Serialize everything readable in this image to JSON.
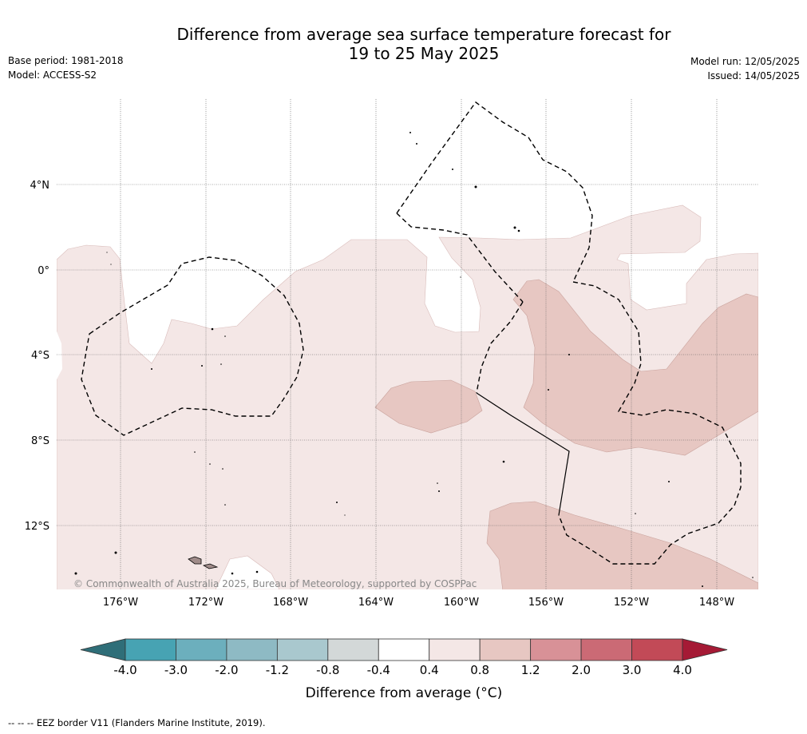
{
  "title": {
    "line1": "Difference from average sea surface temperature forecast for",
    "line2": "19 to 25 May 2025"
  },
  "meta_left": {
    "base_period": "Base period: 1981-2018",
    "model": "Model: ACCESS-S2"
  },
  "meta_right": {
    "model_run": "Model run: 12/05/2025",
    "issued": "Issued: 14/05/2025"
  },
  "map": {
    "lat_labels": [
      "4°N",
      "0°",
      "4°S",
      "8°S",
      "12°S"
    ],
    "lon_labels": [
      "176°W",
      "172°W",
      "168°W",
      "164°W",
      "160°W",
      "156°W",
      "152°W",
      "148°W"
    ],
    "copyright": "© Commonwealth of Australia 2025, Bureau of Meteorology, supported by COSPPac",
    "colors": {
      "ocean_no_anomaly": "#ffffff",
      "anomaly_0_4_to_0_8": "#f4e7e6",
      "anomaly_0_8_to_1_2": "#e7c7c2",
      "land": "#a08c8a"
    }
  },
  "colorbar": {
    "ticks": [
      "-4.0",
      "-3.0",
      "-2.0",
      "-1.2",
      "-0.8",
      "-0.4",
      "0.4",
      "0.8",
      "1.2",
      "2.0",
      "3.0",
      "4.0"
    ],
    "colors": [
      "#2f6e78",
      "#47a3b3",
      "#6cafbd",
      "#8ebac4",
      "#a9c8ce",
      "#d3d8d8",
      "#ffffff",
      "#f4e7e6",
      "#e7c7c2",
      "#d89197",
      "#cb6a75",
      "#c24a57",
      "#a51a35"
    ],
    "label": "Difference from average (°C)"
  },
  "footer": "-- -- -- EEZ border V11 (Flanders Marine Institute, 2019)."
}
